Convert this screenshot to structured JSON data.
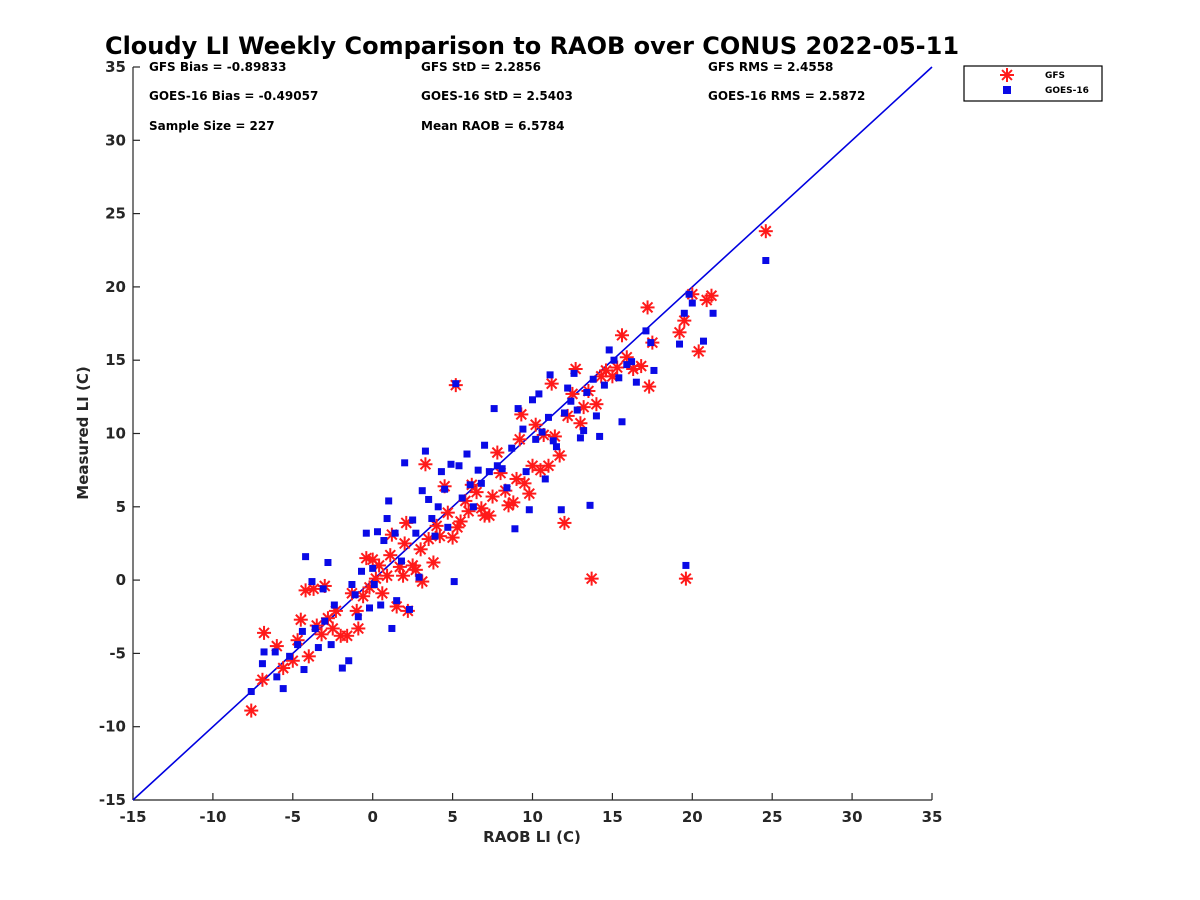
{
  "chart_data": {
    "type": "scatter",
    "title": "Cloudy LI Weekly Comparison to RAOB over CONUS 2022-05-11",
    "xlabel": "RAOB LI (C)",
    "ylabel": "Measured LI (C)",
    "xlim": [
      -15,
      35
    ],
    "ylim": [
      -15,
      35
    ],
    "xticks": [
      "-15",
      "-10",
      "-5",
      "0",
      "5",
      "10",
      "15",
      "20",
      "25",
      "30",
      "35"
    ],
    "yticks": [
      "-15",
      "-10",
      "-5",
      "0",
      "5",
      "10",
      "15",
      "20",
      "25",
      "30",
      "35"
    ],
    "grid": false,
    "legend_position": "top-right-outside",
    "reference_line": {
      "from": [
        -15,
        -15
      ],
      "to": [
        35,
        35
      ],
      "color": "#0000e0"
    },
    "stats": {
      "gfs_bias": "GFS Bias = -0.89833",
      "gfs_std": "GFS StD = 2.2856",
      "gfs_rms": "GFS RMS = 2.4558",
      "goes_bias": "GOES-16 Bias = -0.49057",
      "goes_std": "GOES-16 StD = 2.5403",
      "goes_rms": "GOES-16 RMS = 2.5872",
      "sample_size": "Sample Size = 227",
      "mean_raob": "Mean RAOB = 6.5784"
    },
    "series": [
      {
        "name": "GFS",
        "marker": "asterisk",
        "color": "#ff1a1a",
        "points": [
          [
            -7.6,
            -8.9
          ],
          [
            -6.9,
            -6.8
          ],
          [
            -6.8,
            -3.6
          ],
          [
            -6.0,
            -4.5
          ],
          [
            -5.6,
            -6.0
          ],
          [
            -5.0,
            -5.5
          ],
          [
            -4.7,
            -4.1
          ],
          [
            -4.5,
            -2.7
          ],
          [
            -4.2,
            -0.7
          ],
          [
            -4.0,
            -5.2
          ],
          [
            -3.7,
            -0.6
          ],
          [
            -3.5,
            -3.1
          ],
          [
            -3.2,
            -3.7
          ],
          [
            -3.0,
            -0.4
          ],
          [
            -2.8,
            -2.6
          ],
          [
            -2.5,
            -3.3
          ],
          [
            -2.3,
            -2.1
          ],
          [
            -2.0,
            -3.8
          ],
          [
            -1.6,
            -3.8
          ],
          [
            -1.3,
            -0.9
          ],
          [
            -1.0,
            -2.1
          ],
          [
            -0.9,
            -3.3
          ],
          [
            -0.6,
            -1.1
          ],
          [
            -0.4,
            1.5
          ],
          [
            -0.2,
            -0.5
          ],
          [
            0.0,
            1.4
          ],
          [
            0.2,
            0.1
          ],
          [
            0.4,
            1.0
          ],
          [
            0.6,
            -0.9
          ],
          [
            0.9,
            0.3
          ],
          [
            1.1,
            1.7
          ],
          [
            1.2,
            3.1
          ],
          [
            1.5,
            -1.8
          ],
          [
            1.7,
            0.9
          ],
          [
            1.9,
            0.3
          ],
          [
            2.0,
            2.5
          ],
          [
            2.1,
            3.9
          ],
          [
            2.2,
            -2.1
          ],
          [
            2.5,
            1.0
          ],
          [
            2.7,
            0.7
          ],
          [
            3.0,
            2.1
          ],
          [
            3.1,
            -0.1
          ],
          [
            3.3,
            7.9
          ],
          [
            3.5,
            2.8
          ],
          [
            3.8,
            1.2
          ],
          [
            4.0,
            3.7
          ],
          [
            4.2,
            3.0
          ],
          [
            4.5,
            6.4
          ],
          [
            4.7,
            4.6
          ],
          [
            5.0,
            2.9
          ],
          [
            5.2,
            13.3
          ],
          [
            5.3,
            3.6
          ],
          [
            5.5,
            4.0
          ],
          [
            5.8,
            5.4
          ],
          [
            6.0,
            4.7
          ],
          [
            6.2,
            6.5
          ],
          [
            6.5,
            6.0
          ],
          [
            6.8,
            4.9
          ],
          [
            7.0,
            4.4
          ],
          [
            7.3,
            4.4
          ],
          [
            7.5,
            5.7
          ],
          [
            7.8,
            8.7
          ],
          [
            8.0,
            7.3
          ],
          [
            8.3,
            6.1
          ],
          [
            8.5,
            5.1
          ],
          [
            8.8,
            5.3
          ],
          [
            9.0,
            6.9
          ],
          [
            9.2,
            9.6
          ],
          [
            9.3,
            11.3
          ],
          [
            9.5,
            6.6
          ],
          [
            9.8,
            5.9
          ],
          [
            10.0,
            7.8
          ],
          [
            10.2,
            10.6
          ],
          [
            10.5,
            7.5
          ],
          [
            10.7,
            9.9
          ],
          [
            11.0,
            7.8
          ],
          [
            11.2,
            13.4
          ],
          [
            11.4,
            9.8
          ],
          [
            11.7,
            8.5
          ],
          [
            12.0,
            3.9
          ],
          [
            12.2,
            11.2
          ],
          [
            12.5,
            12.7
          ],
          [
            12.7,
            14.4
          ],
          [
            13.0,
            10.7
          ],
          [
            13.2,
            11.8
          ],
          [
            13.5,
            12.9
          ],
          [
            13.7,
            0.1
          ],
          [
            14.0,
            12.0
          ],
          [
            14.3,
            13.9
          ],
          [
            14.6,
            14.3
          ],
          [
            15.0,
            13.9
          ],
          [
            15.3,
            14.5
          ],
          [
            15.6,
            16.7
          ],
          [
            15.9,
            15.2
          ],
          [
            16.3,
            14.4
          ],
          [
            16.8,
            14.6
          ],
          [
            17.2,
            18.6
          ],
          [
            17.3,
            13.2
          ],
          [
            17.5,
            16.2
          ],
          [
            19.2,
            16.9
          ],
          [
            19.5,
            17.7
          ],
          [
            19.6,
            0.1
          ],
          [
            20.0,
            19.5
          ],
          [
            20.4,
            15.6
          ],
          [
            20.9,
            19.1
          ],
          [
            21.2,
            19.4
          ],
          [
            24.6,
            23.8
          ]
        ]
      },
      {
        "name": "GOES-16",
        "marker": "square",
        "color": "#0a0ae6",
        "points": [
          [
            -7.6,
            -7.6
          ],
          [
            -6.9,
            -5.7
          ],
          [
            -6.8,
            -4.9
          ],
          [
            -6.1,
            -4.9
          ],
          [
            -6.0,
            -6.6
          ],
          [
            -5.6,
            -7.4
          ],
          [
            -5.2,
            -5.2
          ],
          [
            -4.7,
            -4.4
          ],
          [
            -4.4,
            -3.5
          ],
          [
            -4.3,
            -6.1
          ],
          [
            -4.2,
            1.6
          ],
          [
            -3.8,
            -0.1
          ],
          [
            -3.6,
            -3.3
          ],
          [
            -3.4,
            -4.6
          ],
          [
            -3.1,
            -0.6
          ],
          [
            -3.0,
            -2.8
          ],
          [
            -2.8,
            1.2
          ],
          [
            -2.6,
            -4.4
          ],
          [
            -2.4,
            -1.7
          ],
          [
            -1.9,
            -6.0
          ],
          [
            -1.5,
            -5.5
          ],
          [
            -1.3,
            -0.3
          ],
          [
            -1.1,
            -1.0
          ],
          [
            -0.9,
            -2.5
          ],
          [
            -0.7,
            0.6
          ],
          [
            -0.4,
            3.2
          ],
          [
            -0.2,
            -1.9
          ],
          [
            0.0,
            0.8
          ],
          [
            0.1,
            -0.3
          ],
          [
            0.3,
            3.3
          ],
          [
            0.5,
            -1.7
          ],
          [
            0.7,
            2.7
          ],
          [
            0.9,
            4.2
          ],
          [
            1.0,
            5.4
          ],
          [
            1.2,
            -3.3
          ],
          [
            1.4,
            3.2
          ],
          [
            1.5,
            -1.4
          ],
          [
            1.8,
            1.3
          ],
          [
            2.0,
            8.0
          ],
          [
            2.3,
            -2.0
          ],
          [
            2.5,
            4.1
          ],
          [
            2.7,
            3.2
          ],
          [
            2.9,
            0.2
          ],
          [
            3.1,
            6.1
          ],
          [
            3.3,
            8.8
          ],
          [
            3.5,
            5.5
          ],
          [
            3.7,
            4.2
          ],
          [
            3.9,
            3.0
          ],
          [
            4.1,
            5.0
          ],
          [
            4.3,
            7.4
          ],
          [
            4.5,
            6.2
          ],
          [
            4.7,
            3.6
          ],
          [
            4.9,
            7.9
          ],
          [
            5.1,
            -0.1
          ],
          [
            5.2,
            13.4
          ],
          [
            5.4,
            7.8
          ],
          [
            5.6,
            5.6
          ],
          [
            5.9,
            8.6
          ],
          [
            6.1,
            6.5
          ],
          [
            6.3,
            5.0
          ],
          [
            6.6,
            7.5
          ],
          [
            6.8,
            6.6
          ],
          [
            7.0,
            9.2
          ],
          [
            7.3,
            7.4
          ],
          [
            7.6,
            11.7
          ],
          [
            7.8,
            7.8
          ],
          [
            8.1,
            7.6
          ],
          [
            8.4,
            6.3
          ],
          [
            8.7,
            9.0
          ],
          [
            8.9,
            3.5
          ],
          [
            9.1,
            11.7
          ],
          [
            9.4,
            10.3
          ],
          [
            9.6,
            7.4
          ],
          [
            9.8,
            4.8
          ],
          [
            10.0,
            12.3
          ],
          [
            10.2,
            9.6
          ],
          [
            10.4,
            12.7
          ],
          [
            10.6,
            10.1
          ],
          [
            10.8,
            6.9
          ],
          [
            11.0,
            11.1
          ],
          [
            11.1,
            14.0
          ],
          [
            11.3,
            9.5
          ],
          [
            11.5,
            9.1
          ],
          [
            11.8,
            4.8
          ],
          [
            12.0,
            11.4
          ],
          [
            12.2,
            13.1
          ],
          [
            12.4,
            12.2
          ],
          [
            12.6,
            14.1
          ],
          [
            12.8,
            11.6
          ],
          [
            13.0,
            9.7
          ],
          [
            13.2,
            10.2
          ],
          [
            13.4,
            12.8
          ],
          [
            13.6,
            5.1
          ],
          [
            13.8,
            13.7
          ],
          [
            14.0,
            11.2
          ],
          [
            14.2,
            9.8
          ],
          [
            14.5,
            13.3
          ],
          [
            14.8,
            15.7
          ],
          [
            15.1,
            15.0
          ],
          [
            15.4,
            13.8
          ],
          [
            15.6,
            10.8
          ],
          [
            15.9,
            14.7
          ],
          [
            16.2,
            14.9
          ],
          [
            16.5,
            13.5
          ],
          [
            17.1,
            17.0
          ],
          [
            17.4,
            16.2
          ],
          [
            17.6,
            14.3
          ],
          [
            19.2,
            16.1
          ],
          [
            19.5,
            18.2
          ],
          [
            19.6,
            1.0
          ],
          [
            19.8,
            19.5
          ],
          [
            20.0,
            18.9
          ],
          [
            20.7,
            16.3
          ],
          [
            21.3,
            18.2
          ],
          [
            24.6,
            21.8
          ]
        ]
      }
    ]
  }
}
